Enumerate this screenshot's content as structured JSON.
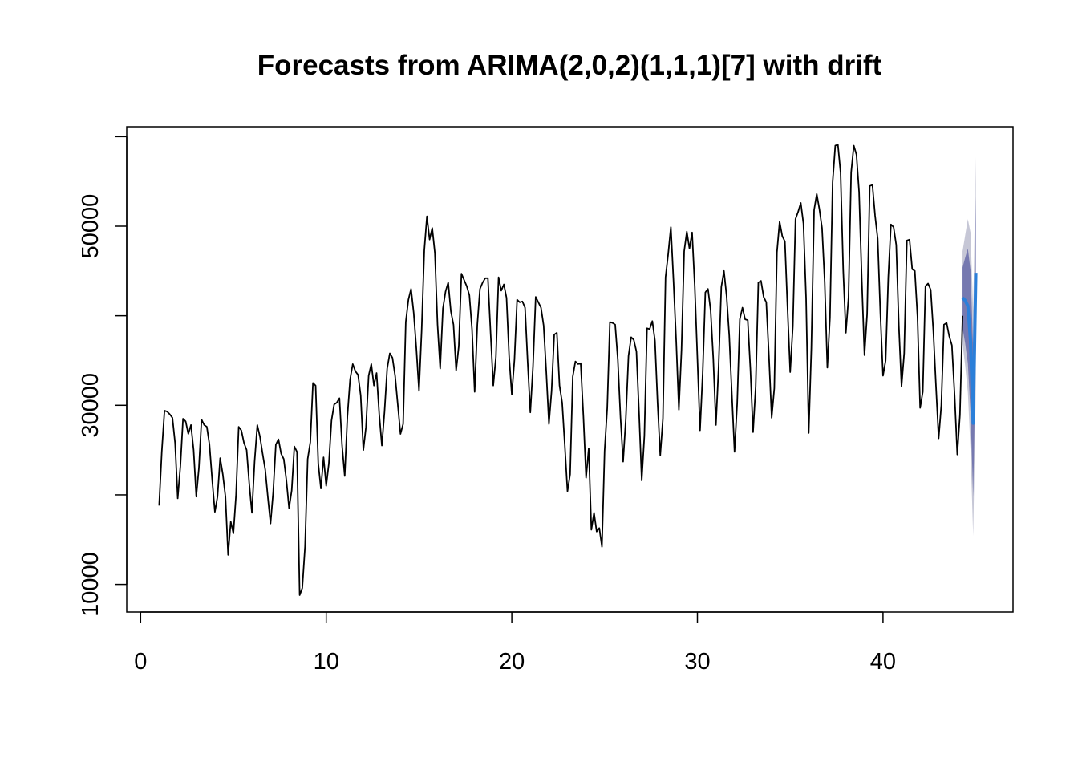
{
  "chart_data": {
    "type": "line",
    "title": "Forecasts from ARIMA(2,0,2)(1,1,1)[7] with drift",
    "xlabel": "",
    "ylabel": "",
    "xlim": [
      0,
      47
    ],
    "ylim": [
      6000,
      61000
    ],
    "x_ticks": [
      0,
      10,
      20,
      30,
      40
    ],
    "x_tick_labels": [
      "0",
      "10",
      "20",
      "30",
      "40"
    ],
    "y_ticks": [
      10000,
      20000,
      30000,
      40000,
      50000,
      60000
    ],
    "y_tick_labels": [
      "10000",
      "",
      "30000",
      "",
      "50000",
      ""
    ],
    "grid": false,
    "legend": "none",
    "series": [
      {
        "role": "observed",
        "color": "#000000",
        "x_start": 1,
        "x_step": 0.142857,
        "values": [
          18800,
          24800,
          29400,
          29300,
          29000,
          28600,
          25800,
          19600,
          23200,
          28500,
          28200,
          26800,
          27800,
          25000,
          19800,
          23000,
          28400,
          27800,
          27600,
          25600,
          21600,
          18100,
          19800,
          24100,
          22300,
          19800,
          13300,
          17000,
          15700,
          20000,
          27600,
          27200,
          25800,
          25000,
          21200,
          18000,
          23700,
          27800,
          26500,
          24600,
          22800,
          19700,
          16800,
          20300,
          25600,
          26200,
          24600,
          24000,
          21600,
          18500,
          20500,
          25400,
          24800,
          8800,
          9600,
          14200,
          24000,
          25900,
          32500,
          32200,
          23500,
          20700,
          24200,
          21000,
          23500,
          28300,
          30100,
          30300,
          30800,
          25500,
          22100,
          28700,
          32900,
          34600,
          33800,
          33400,
          31100,
          25000,
          27600,
          33300,
          34600,
          32200,
          33600,
          29000,
          25500,
          29300,
          34100,
          35800,
          35300,
          33300,
          30000,
          26800,
          27900,
          39300,
          41800,
          43000,
          40300,
          36300,
          31600,
          38400,
          47300,
          51100,
          48500,
          49800,
          47000,
          39000,
          34100,
          40800,
          42700,
          43700,
          40500,
          39000,
          33900,
          36600,
          44700,
          44000,
          43300,
          42300,
          38500,
          31500,
          39000,
          43000,
          43700,
          44200,
          44200,
          38000,
          32200,
          35400,
          44300,
          42800,
          43500,
          42000,
          35400,
          31200,
          35100,
          41800,
          41500,
          41600,
          40900,
          34800,
          29200,
          34300,
          42100,
          41500,
          40900,
          38900,
          33700,
          27900,
          31600,
          37900,
          38100,
          32200,
          30300,
          25500,
          20400,
          22300,
          33200,
          34900,
          34600,
          34700,
          28700,
          21900,
          25200,
          16100,
          18000,
          15900,
          16300,
          14200,
          24900,
          29700,
          39300,
          39200,
          39000,
          35100,
          28700,
          23700,
          28400,
          35500,
          37600,
          37300,
          36000,
          29100,
          21600,
          26600,
          38600,
          38500,
          39400,
          37200,
          30200,
          24400,
          28500,
          44300,
          46900,
          49900,
          43900,
          37100,
          29500,
          36200,
          47200,
          49400,
          47500,
          49300,
          43300,
          35300,
          27200,
          33600,
          42600,
          43000,
          40600,
          35200,
          27800,
          34200,
          43200,
          45000,
          42200,
          37800,
          31200,
          24800,
          30200,
          39600,
          40900,
          39600,
          39500,
          34000,
          27000,
          32100,
          43700,
          43900,
          42100,
          41500,
          35300,
          28600,
          31900,
          47100,
          50500,
          48900,
          48300,
          40800,
          33700,
          38800,
          50800,
          51600,
          52600,
          50300,
          42000,
          26900,
          36400,
          51800,
          53600,
          51900,
          49800,
          43800,
          34200,
          39800,
          54900,
          59000,
          59100,
          56000,
          45100,
          38100,
          42000,
          56000,
          59000,
          58000,
          53800,
          43900,
          35600,
          40200,
          54500,
          54600,
          51200,
          48600,
          40300,
          33300,
          35000,
          44300,
          50200,
          49900,
          47900,
          38800,
          32100,
          35800,
          48400,
          48500,
          45200,
          45000,
          39900,
          29700,
          31500,
          43300,
          43600,
          42900,
          38200,
          32100,
          26300,
          30000,
          39000,
          39200,
          37700,
          36700,
          31100,
          24500,
          28900,
          40000
        ]
      },
      {
        "role": "forecast",
        "color": "#2b7fd9",
        "x_start": 44.286,
        "x_step": 0.142857,
        "values": [
          42000,
          41700,
          41100,
          37200,
          28000,
          44800
        ],
        "band_80": {
          "color": "#5b5fa3",
          "lower": [
            38600,
            36900,
            34700,
            29300,
            19800,
            36300
          ],
          "upper": [
            45400,
            46500,
            47500,
            45100,
            36200,
            53300
          ]
        },
        "band_95": {
          "color": "#c6c7d6",
          "lower": [
            36800,
            34400,
            31400,
            25100,
            15400,
            31800
          ],
          "upper": [
            47200,
            49000,
            50800,
            49300,
            40600,
            57800
          ]
        }
      }
    ]
  }
}
